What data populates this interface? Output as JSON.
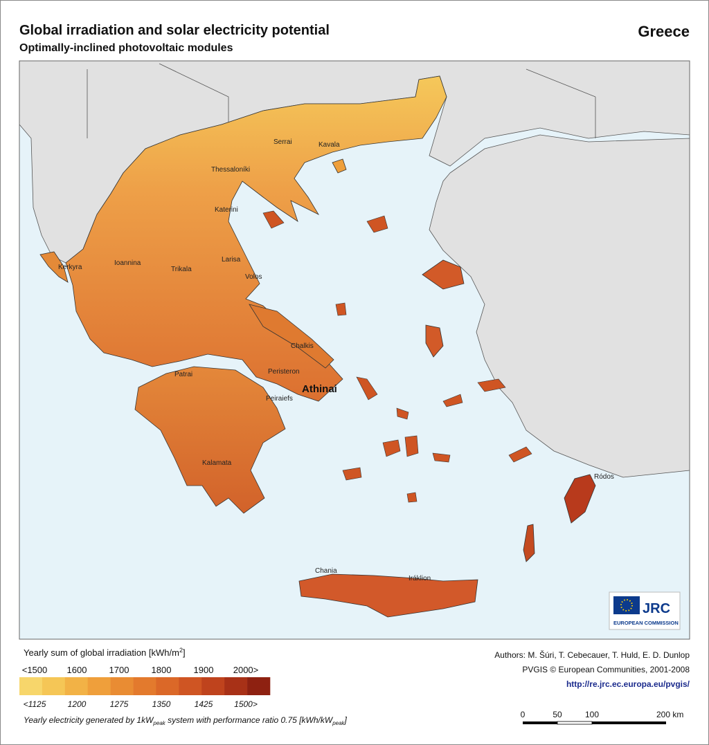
{
  "header": {
    "title": "Global irradiation and solar electricity potential",
    "subtitle": "Optimally-inclined photovoltaic modules",
    "country": "Greece"
  },
  "map": {
    "cities": [
      "Serrai",
      "Kavala",
      "Thessaloníki",
      "Katerini",
      "Kerkyra",
      "Ioannina",
      "Trikala",
      "Larisa",
      "Volos",
      "Chalkis",
      "Peristeron",
      "Athinai",
      "Patrai",
      "Peiraiefs",
      "Kalamata",
      "Ródos",
      "Chania",
      "Iráklion"
    ],
    "logo": {
      "name": "JRC",
      "org": "EUROPEAN COMMISSION"
    }
  },
  "legend": {
    "title": [
      "Yearly sum of global irradiation [kWh/m",
      "2",
      "]"
    ],
    "irradiation_labels": [
      "<1500",
      "1600",
      "1700",
      "1800",
      "1900",
      "2000>"
    ],
    "electricity_labels": [
      "<1125",
      "1200",
      "1275",
      "1350",
      "1425",
      "1500>"
    ],
    "colors": [
      "#f7d66b",
      "#f5c656",
      "#f2b246",
      "#ef9f3b",
      "#e98c33",
      "#e37a2d",
      "#db6828",
      "#cf5523",
      "#bf431d",
      "#a83117",
      "#8e2111"
    ],
    "footnote": [
      "Yearly electricity generated by 1kW",
      "peak",
      " system with performance ratio 0.75 [kWh/kW",
      "peak",
      "]"
    ]
  },
  "credits": {
    "authors": "Authors: M. Šúri, T. Cebecauer, T. Huld, E. D. Dunlop",
    "copyright": "PVGIS © European Communities, 2001-2008",
    "url": "http://re.jrc.ec.europa.eu/pvgis/"
  },
  "scale_bar": {
    "labels": [
      "0",
      "50",
      "100",
      "200 km"
    ]
  }
}
